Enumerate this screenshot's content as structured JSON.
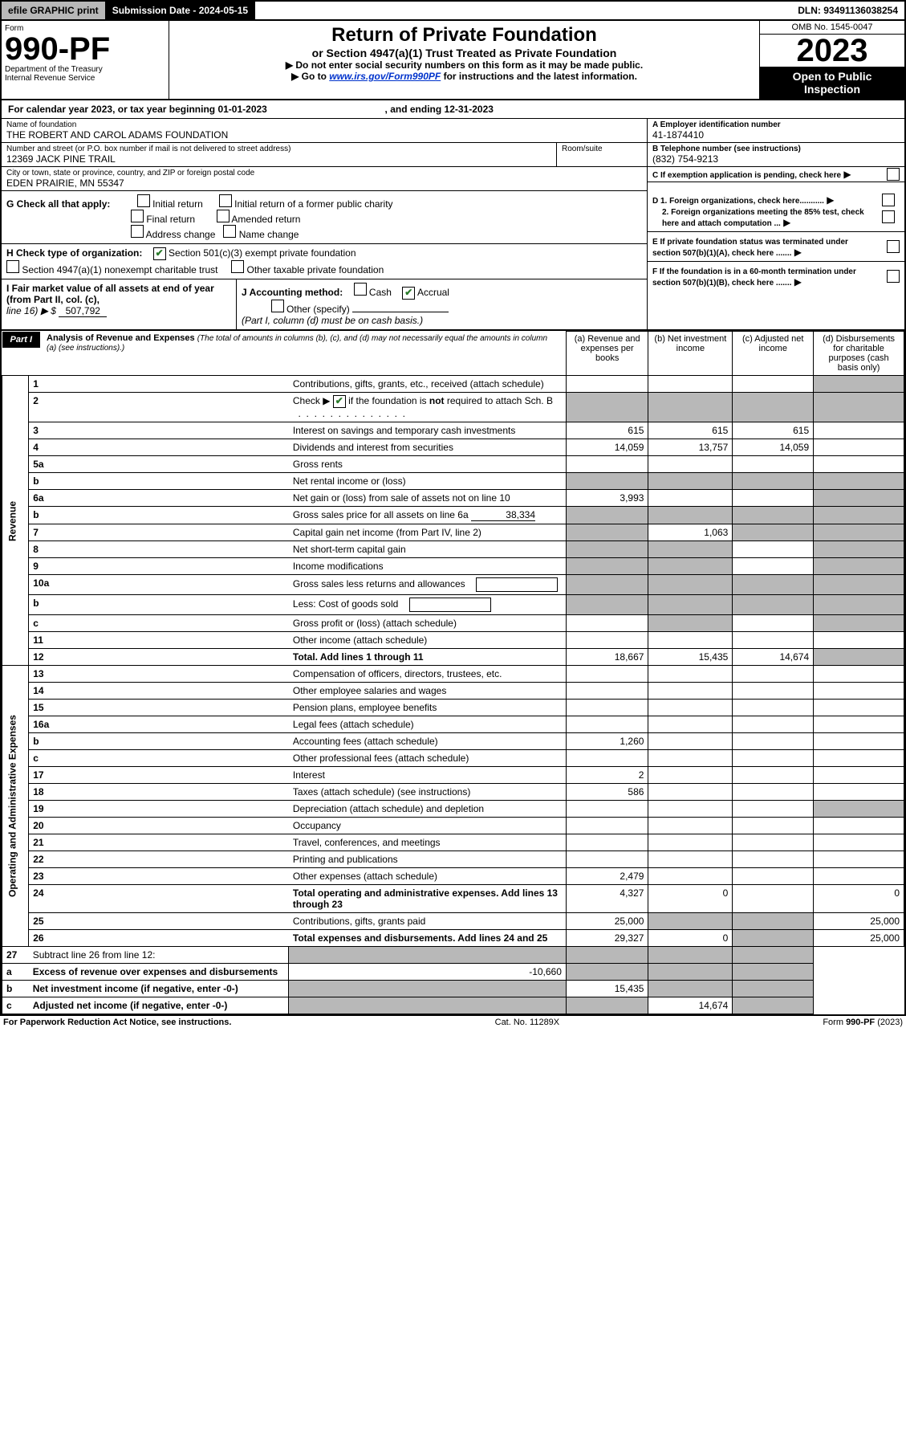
{
  "topbar": {
    "efile": "efile GRAPHIC print",
    "submission": "Submission Date - 2024-05-15",
    "dln": "DLN: 93491136038254"
  },
  "header": {
    "form": "Form",
    "formNo": "990-PF",
    "dept": "Department of the Treasury",
    "irs": "Internal Revenue Service",
    "title": "Return of Private Foundation",
    "subtitle": "or Section 4947(a)(1) Trust Treated as Private Foundation",
    "instr1": "▶ Do not enter social security numbers on this form as it may be made public.",
    "instr2a": "▶ Go to ",
    "instr2link": "www.irs.gov/Form990PF",
    "instr2b": " for instructions and the latest information.",
    "omb": "OMB No. 1545-0047",
    "year": "2023",
    "open": "Open to Public Inspection"
  },
  "calendar": {
    "text1": "For calendar year 2023, or tax year beginning ",
    "begin": "01-01-2023",
    "text2": ", and ending ",
    "end": "12-31-2023"
  },
  "info": {
    "nameLabel": "Name of foundation",
    "name": "THE ROBERT AND CAROL ADAMS FOUNDATION",
    "addrLabel": "Number and street (or P.O. box number if mail is not delivered to street address)",
    "addr": "12369 JACK PINE TRAIL",
    "roomLabel": "Room/suite",
    "cityLabel": "City or town, state or province, country, and ZIP or foreign postal code",
    "city": "EDEN PRAIRIE, MN  55347",
    "einLabel": "A Employer identification number",
    "ein": "41-1874410",
    "telLabel": "B Telephone number (see instructions)",
    "tel": "(832) 754-9213",
    "cLabel": "C If exemption application is pending, check here"
  },
  "checks": {
    "g": "G Check all that apply:",
    "g1": "Initial return",
    "g2": "Initial return of a former public charity",
    "g3": "Final return",
    "g4": "Amended return",
    "g5": "Address change",
    "g6": "Name change",
    "h": "H Check type of organization:",
    "h1": "Section 501(c)(3) exempt private foundation",
    "h2": "Section 4947(a)(1) nonexempt charitable trust",
    "h3": "Other taxable private foundation",
    "i1": "I Fair market value of all assets at end of year (from Part II, col. (c),",
    "i2": "line 16) ▶ $ ",
    "iVal": "507,792",
    "j": "J Accounting method:",
    "j1": "Cash",
    "j2": "Accrual",
    "j3": "Other (specify)",
    "jNote": "(Part I, column (d) must be on cash basis.)",
    "d1": "D 1. Foreign organizations, check here...........",
    "d2": "2. Foreign organizations meeting the 85% test, check here and attach computation ...",
    "e": "E  If private foundation status was terminated under section 507(b)(1)(A), check here .......",
    "f": "F  If the foundation is in a 60-month termination under section 507(b)(1)(B), check here ......."
  },
  "part1": {
    "label": "Part I",
    "title": "Analysis of Revenue and Expenses",
    "note": "(The total of amounts in columns (b), (c), and (d) may not necessarily equal the amounts in column (a) (see instructions).)",
    "colA": "(a) Revenue and expenses per books",
    "colB": "(b) Net investment income",
    "colC": "(c) Adjusted net income",
    "colD": "(d) Disbursements for charitable purposes (cash basis only)"
  },
  "sideRevenue": "Revenue",
  "sideExpenses": "Operating and Administrative Expenses",
  "rows": [
    {
      "n": "1",
      "d": "Contributions, gifts, grants, etc., received (attach schedule)"
    },
    {
      "n": "2",
      "d": "Check ▶ ☑ if the foundation is not required to attach Sch. B",
      "dotsOnly": true
    },
    {
      "n": "3",
      "d": "Interest on savings and temporary cash investments",
      "a": "615",
      "b": "615",
      "c": "615"
    },
    {
      "n": "4",
      "d": "Dividends and interest from securities",
      "a": "14,059",
      "b": "13,757",
      "c": "14,059"
    },
    {
      "n": "5a",
      "d": "Gross rents"
    },
    {
      "n": "b",
      "d": "Net rental income or (loss)"
    },
    {
      "n": "6a",
      "d": "Net gain or (loss) from sale of assets not on line 10",
      "a": "3,993"
    },
    {
      "n": "b",
      "d": "Gross sales price for all assets on line 6a",
      "inline": "38,334"
    },
    {
      "n": "7",
      "d": "Capital gain net income (from Part IV, line 2)",
      "b": "1,063"
    },
    {
      "n": "8",
      "d": "Net short-term capital gain"
    },
    {
      "n": "9",
      "d": "Income modifications"
    },
    {
      "n": "10a",
      "d": "Gross sales less returns and allowances",
      "box": true
    },
    {
      "n": "b",
      "d": "Less: Cost of goods sold",
      "box": true
    },
    {
      "n": "c",
      "d": "Gross profit or (loss) (attach schedule)"
    },
    {
      "n": "11",
      "d": "Other income (attach schedule)"
    },
    {
      "n": "12",
      "d": "Total. Add lines 1 through 11",
      "bold": true,
      "a": "18,667",
      "b": "15,435",
      "c": "14,674"
    }
  ],
  "expRows": [
    {
      "n": "13",
      "d": "Compensation of officers, directors, trustees, etc."
    },
    {
      "n": "14",
      "d": "Other employee salaries and wages"
    },
    {
      "n": "15",
      "d": "Pension plans, employee benefits"
    },
    {
      "n": "16a",
      "d": "Legal fees (attach schedule)"
    },
    {
      "n": "b",
      "d": "Accounting fees (attach schedule)",
      "a": "1,260"
    },
    {
      "n": "c",
      "d": "Other professional fees (attach schedule)"
    },
    {
      "n": "17",
      "d": "Interest",
      "a": "2"
    },
    {
      "n": "18",
      "d": "Taxes (attach schedule) (see instructions)",
      "a": "586"
    },
    {
      "n": "19",
      "d": "Depreciation (attach schedule) and depletion"
    },
    {
      "n": "20",
      "d": "Occupancy"
    },
    {
      "n": "21",
      "d": "Travel, conferences, and meetings"
    },
    {
      "n": "22",
      "d": "Printing and publications"
    },
    {
      "n": "23",
      "d": "Other expenses (attach schedule)",
      "a": "2,479"
    },
    {
      "n": "24",
      "d": "Total operating and administrative expenses. Add lines 13 through 23",
      "bold": true,
      "a": "4,327",
      "b": "0",
      "dVal": "0"
    },
    {
      "n": "25",
      "d": "Contributions, gifts, grants paid",
      "a": "25,000",
      "dVal": "25,000"
    },
    {
      "n": "26",
      "d": "Total expenses and disbursements. Add lines 24 and 25",
      "bold": true,
      "a": "29,327",
      "b": "0",
      "dVal": "25,000"
    }
  ],
  "bottomRows": [
    {
      "n": "27",
      "d": "Subtract line 26 from line 12:"
    },
    {
      "n": "a",
      "d": "Excess of revenue over expenses and disbursements",
      "bold": true,
      "a": "-10,660"
    },
    {
      "n": "b",
      "d": "Net investment income (if negative, enter -0-)",
      "bold": true,
      "b": "15,435"
    },
    {
      "n": "c",
      "d": "Adjusted net income (if negative, enter -0-)",
      "bold": true,
      "c": "14,674"
    }
  ],
  "footer": {
    "left": "For Paperwork Reduction Act Notice, see instructions.",
    "mid": "Cat. No. 11289X",
    "right": "Form 990-PF (2023)"
  }
}
